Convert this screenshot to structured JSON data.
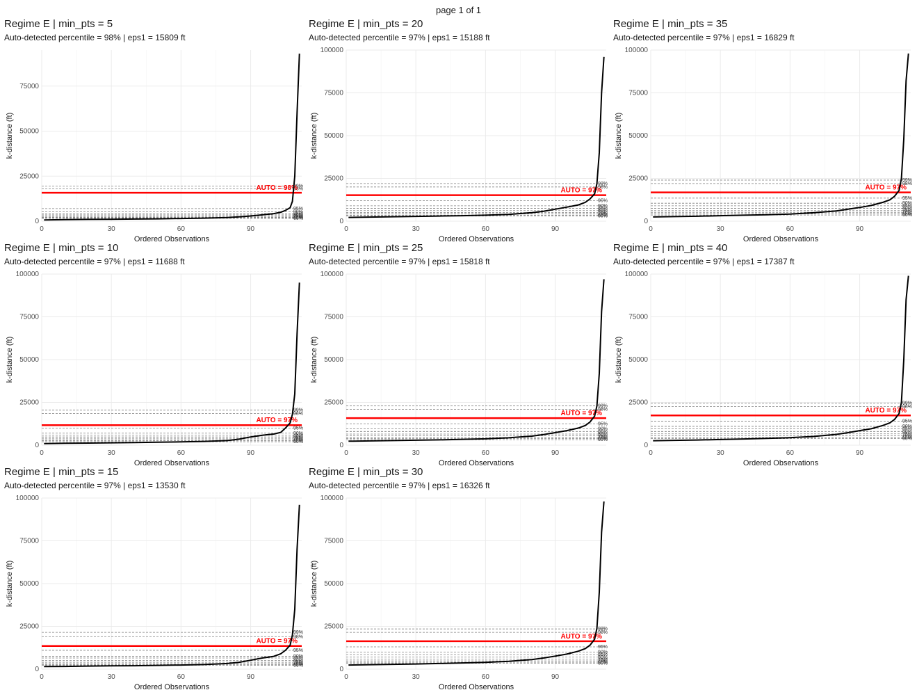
{
  "page": {
    "title": "page 1 of 1"
  },
  "colors": {
    "auto_line": "#ff0000",
    "curve": "#000000",
    "grid": "#ebebeb",
    "ref_line": "#7f7f7f"
  },
  "chart_data": [
    {
      "type": "line",
      "title": "Regime E | min_pts = 5",
      "subtitle": "Auto-detected percentile = 98% | eps1 = 15809 ft",
      "xlabel": "Ordered Observations",
      "ylabel": "k-distance (ft)",
      "xlim": [
        0,
        112
      ],
      "ylim": [
        0,
        95000
      ],
      "xticks": [
        0,
        30,
        60,
        90
      ],
      "yticks": [
        0,
        25000,
        50000,
        75000
      ],
      "auto_eps": 15809,
      "auto_label": "AUTO = 98%",
      "percentile_refs": [
        {
          "label": "99%",
          "value": 19500
        },
        {
          "label": "98%",
          "value": 18000
        },
        {
          "label": "95%",
          "value": 7000
        },
        {
          "label": "90%",
          "value": 5200
        },
        {
          "label": "85%",
          "value": 4300
        },
        {
          "label": "80%",
          "value": 3500
        },
        {
          "label": "75%",
          "value": 2800
        },
        {
          "label": "70%",
          "value": 2300
        },
        {
          "label": "65%",
          "value": 1900
        },
        {
          "label": "60%",
          "value": 1600
        }
      ],
      "curve": {
        "x": [
          1,
          10,
          20,
          30,
          40,
          50,
          60,
          70,
          80,
          85,
          90,
          95,
          100,
          103,
          105,
          107,
          108,
          109,
          110,
          111
        ],
        "y": [
          700,
          900,
          1000,
          1100,
          1200,
          1300,
          1500,
          1700,
          2000,
          2400,
          2900,
          3500,
          4200,
          5000,
          6000,
          7500,
          11000,
          25000,
          60000,
          93000
        ]
      }
    },
    {
      "type": "line",
      "title": "Regime E | min_pts = 10",
      "subtitle": "Auto-detected percentile = 97% | eps1 = 11688 ft",
      "xlabel": "Ordered Observations",
      "ylabel": "k-distance (ft)",
      "xlim": [
        0,
        112
      ],
      "ylim": [
        0,
        100000
      ],
      "xticks": [
        0,
        30,
        60,
        90
      ],
      "yticks": [
        0,
        25000,
        50000,
        75000,
        100000
      ],
      "auto_eps": 11688,
      "auto_label": "AUTO = 97%",
      "percentile_refs": [
        {
          "label": "99%",
          "value": 20500
        },
        {
          "label": "98%",
          "value": 18500
        },
        {
          "label": "95%",
          "value": 10000
        },
        {
          "label": "90%",
          "value": 7000
        },
        {
          "label": "85%",
          "value": 5800
        },
        {
          "label": "80%",
          "value": 4800
        },
        {
          "label": "75%",
          "value": 4000
        },
        {
          "label": "70%",
          "value": 3200
        },
        {
          "label": "65%",
          "value": 2600
        },
        {
          "label": "60%",
          "value": 2000
        }
      ],
      "curve": {
        "x": [
          1,
          10,
          20,
          30,
          40,
          50,
          60,
          70,
          80,
          85,
          90,
          95,
          100,
          103,
          105,
          107,
          108,
          109,
          110,
          111
        ],
        "y": [
          900,
          1100,
          1200,
          1400,
          1500,
          1700,
          1900,
          2200,
          2700,
          3500,
          4800,
          5800,
          6500,
          7500,
          10000,
          13000,
          18000,
          30000,
          65000,
          95000
        ]
      }
    },
    {
      "type": "line",
      "title": "Regime E | min_pts = 15",
      "subtitle": "Auto-detected percentile = 97% | eps1 = 13530 ft",
      "xlabel": "Ordered Observations",
      "ylabel": "k-distance (ft)",
      "xlim": [
        0,
        112
      ],
      "ylim": [
        0,
        100000
      ],
      "xticks": [
        0,
        30,
        60,
        90
      ],
      "yticks": [
        0,
        25000,
        50000,
        75000,
        100000
      ],
      "auto_eps": 13530,
      "auto_label": "AUTO = 97%",
      "percentile_refs": [
        {
          "label": "99%",
          "value": 21500
        },
        {
          "label": "98%",
          "value": 19000
        },
        {
          "label": "95%",
          "value": 11000
        },
        {
          "label": "90%",
          "value": 7500
        },
        {
          "label": "85%",
          "value": 6500
        },
        {
          "label": "80%",
          "value": 5000
        },
        {
          "label": "75%",
          "value": 4000
        },
        {
          "label": "70%",
          "value": 3300
        },
        {
          "label": "65%",
          "value": 2700
        },
        {
          "label": "60%",
          "value": 2300
        }
      ],
      "curve": {
        "x": [
          1,
          10,
          20,
          30,
          40,
          50,
          60,
          70,
          80,
          85,
          90,
          95,
          100,
          103,
          105,
          107,
          108,
          109,
          110,
          111
        ],
        "y": [
          1500,
          1600,
          1800,
          1900,
          2000,
          2200,
          2400,
          2700,
          3300,
          4000,
          5200,
          6500,
          7500,
          9000,
          11000,
          14000,
          20000,
          35000,
          70000,
          96000
        ]
      }
    },
    {
      "type": "line",
      "title": "Regime E | min_pts = 20",
      "subtitle": "Auto-detected percentile = 97% | eps1 = 15188 ft",
      "xlabel": "Ordered Observations",
      "ylabel": "k-distance (ft)",
      "xlim": [
        0,
        112
      ],
      "ylim": [
        0,
        100000
      ],
      "xticks": [
        0,
        30,
        60,
        90
      ],
      "yticks": [
        0,
        25000,
        50000,
        75000,
        100000
      ],
      "auto_eps": 15188,
      "auto_label": "AUTO = 97%",
      "percentile_refs": [
        {
          "label": "99%",
          "value": 22000
        },
        {
          "label": "98%",
          "value": 20000
        },
        {
          "label": "95%",
          "value": 12000
        },
        {
          "label": "90%",
          "value": 9000
        },
        {
          "label": "85%",
          "value": 7500
        },
        {
          "label": "80%",
          "value": 6200
        },
        {
          "label": "75%",
          "value": 5000
        },
        {
          "label": "70%",
          "value": 4200
        },
        {
          "label": "65%",
          "value": 3500
        },
        {
          "label": "60%",
          "value": 3000
        }
      ],
      "curve": {
        "x": [
          1,
          10,
          20,
          30,
          40,
          50,
          60,
          70,
          80,
          85,
          90,
          95,
          100,
          103,
          105,
          107,
          108,
          109,
          110,
          111
        ],
        "y": [
          2200,
          2400,
          2600,
          2800,
          3000,
          3200,
          3500,
          4000,
          5000,
          5800,
          7000,
          8200,
          9500,
          11000,
          13000,
          16000,
          22000,
          40000,
          75000,
          96000
        ]
      }
    },
    {
      "type": "line",
      "title": "Regime E | min_pts = 25",
      "subtitle": "Auto-detected percentile = 97% | eps1 = 15818 ft",
      "xlabel": "Ordered Observations",
      "ylabel": "k-distance (ft)",
      "xlim": [
        0,
        112
      ],
      "ylim": [
        0,
        100000
      ],
      "xticks": [
        0,
        30,
        60,
        90
      ],
      "yticks": [
        0,
        25000,
        50000,
        75000,
        100000
      ],
      "auto_eps": 15818,
      "auto_label": "AUTO = 97%",
      "percentile_refs": [
        {
          "label": "99%",
          "value": 23000
        },
        {
          "label": "98%",
          "value": 21000
        },
        {
          "label": "95%",
          "value": 12500
        },
        {
          "label": "90%",
          "value": 9500
        },
        {
          "label": "85%",
          "value": 8000
        },
        {
          "label": "80%",
          "value": 6500
        },
        {
          "label": "75%",
          "value": 5500
        },
        {
          "label": "70%",
          "value": 4500
        },
        {
          "label": "65%",
          "value": 3800
        },
        {
          "label": "60%",
          "value": 3200
        }
      ],
      "curve": {
        "x": [
          1,
          10,
          20,
          30,
          40,
          50,
          60,
          70,
          80,
          85,
          90,
          95,
          100,
          103,
          105,
          107,
          108,
          109,
          110,
          111
        ],
        "y": [
          2300,
          2500,
          2700,
          2900,
          3100,
          3400,
          3700,
          4300,
          5300,
          6200,
          7300,
          8500,
          10000,
          11500,
          13500,
          17000,
          23000,
          42000,
          78000,
          97000
        ]
      }
    },
    {
      "type": "line",
      "title": "Regime E | min_pts = 30",
      "subtitle": "Auto-detected percentile = 97% | eps1 = 16326 ft",
      "xlabel": "Ordered Observations",
      "ylabel": "k-distance (ft)",
      "xlim": [
        0,
        112
      ],
      "ylim": [
        0,
        100000
      ],
      "xticks": [
        0,
        30,
        60,
        90
      ],
      "yticks": [
        0,
        25000,
        50000,
        75000,
        100000
      ],
      "auto_eps": 16326,
      "auto_label": "AUTO = 97%",
      "percentile_refs": [
        {
          "label": "99%",
          "value": 23500
        },
        {
          "label": "98%",
          "value": 21500
        },
        {
          "label": "95%",
          "value": 13000
        },
        {
          "label": "90%",
          "value": 10000
        },
        {
          "label": "85%",
          "value": 8500
        },
        {
          "label": "80%",
          "value": 7000
        },
        {
          "label": "75%",
          "value": 5800
        },
        {
          "label": "70%",
          "value": 4800
        },
        {
          "label": "65%",
          "value": 4000
        },
        {
          "label": "60%",
          "value": 3400
        }
      ],
      "curve": {
        "x": [
          1,
          10,
          20,
          30,
          40,
          50,
          60,
          70,
          80,
          85,
          90,
          95,
          100,
          103,
          105,
          107,
          108,
          109,
          110,
          111
        ],
        "y": [
          2400,
          2600,
          2800,
          3000,
          3300,
          3600,
          4000,
          4600,
          5600,
          6500,
          7600,
          8800,
          10500,
          12000,
          14000,
          17500,
          24000,
          45000,
          80000,
          98000
        ]
      }
    },
    {
      "type": "line",
      "title": "Regime E | min_pts = 35",
      "subtitle": "Auto-detected percentile = 97% | eps1 = 16829 ft",
      "xlabel": "Ordered Observations",
      "ylabel": "k-distance (ft)",
      "xlim": [
        0,
        112
      ],
      "ylim": [
        0,
        100000
      ],
      "xticks": [
        0,
        30,
        60,
        90
      ],
      "yticks": [
        0,
        25000,
        50000,
        75000,
        100000
      ],
      "auto_eps": 16829,
      "auto_label": "AUTO = 97%",
      "percentile_refs": [
        {
          "label": "99%",
          "value": 24000
        },
        {
          "label": "98%",
          "value": 22000
        },
        {
          "label": "95%",
          "value": 13500
        },
        {
          "label": "90%",
          "value": 10500
        },
        {
          "label": "85%",
          "value": 9000
        },
        {
          "label": "80%",
          "value": 7500
        },
        {
          "label": "75%",
          "value": 6200
        },
        {
          "label": "70%",
          "value": 5200
        },
        {
          "label": "65%",
          "value": 4300
        },
        {
          "label": "60%",
          "value": 3600
        }
      ],
      "curve": {
        "x": [
          1,
          10,
          20,
          30,
          40,
          50,
          60,
          70,
          80,
          85,
          90,
          95,
          100,
          103,
          105,
          107,
          108,
          109,
          110,
          111
        ],
        "y": [
          2500,
          2700,
          2900,
          3200,
          3500,
          3800,
          4200,
          4900,
          6000,
          7000,
          8000,
          9200,
          11000,
          12500,
          14500,
          18000,
          25000,
          48000,
          82000,
          98000
        ]
      }
    },
    {
      "type": "line",
      "title": "Regime E | min_pts = 40",
      "subtitle": "Auto-detected percentile = 97% | eps1 = 17387 ft",
      "xlabel": "Ordered Observations",
      "ylabel": "k-distance (ft)",
      "xlim": [
        0,
        112
      ],
      "ylim": [
        0,
        100000
      ],
      "xticks": [
        0,
        30,
        60,
        90
      ],
      "yticks": [
        0,
        25000,
        50000,
        75000,
        100000
      ],
      "auto_eps": 17387,
      "auto_label": "AUTO = 97%",
      "percentile_refs": [
        {
          "label": "99%",
          "value": 24500
        },
        {
          "label": "98%",
          "value": 22500
        },
        {
          "label": "95%",
          "value": 14000
        },
        {
          "label": "90%",
          "value": 11000
        },
        {
          "label": "85%",
          "value": 9500
        },
        {
          "label": "80%",
          "value": 8000
        },
        {
          "label": "75%",
          "value": 6600
        },
        {
          "label": "70%",
          "value": 5500
        },
        {
          "label": "65%",
          "value": 4500
        },
        {
          "label": "60%",
          "value": 3800
        }
      ],
      "curve": {
        "x": [
          1,
          10,
          20,
          30,
          40,
          50,
          60,
          70,
          80,
          85,
          90,
          95,
          100,
          103,
          105,
          107,
          108,
          109,
          110,
          111
        ],
        "y": [
          2600,
          2800,
          3000,
          3300,
          3600,
          4000,
          4400,
          5100,
          6300,
          7300,
          8500,
          9600,
          11500,
          13000,
          15000,
          18500,
          25000,
          50000,
          85000,
          99000
        ]
      }
    }
  ]
}
